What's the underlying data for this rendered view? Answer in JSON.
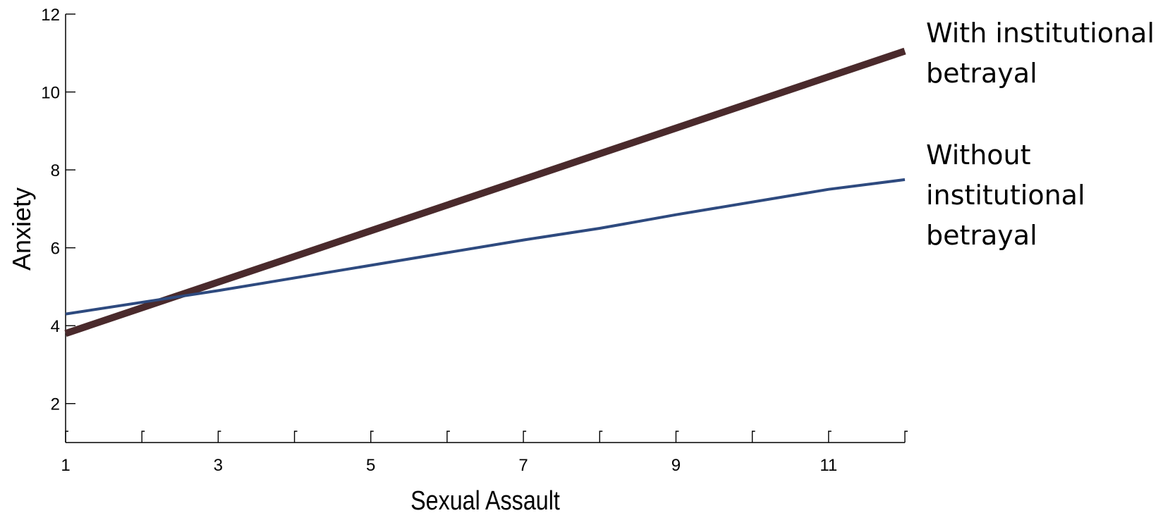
{
  "chart_data": {
    "type": "line",
    "title": "",
    "xlabel": "Sexual Assault",
    "ylabel": "Anxiety",
    "xlim": [
      1,
      12
    ],
    "ylim": [
      1,
      12
    ],
    "x_ticks": [
      1,
      3,
      5,
      7,
      9,
      11
    ],
    "x_minor_ticks": [
      1,
      2,
      3,
      4,
      5,
      6,
      7,
      8,
      9,
      10,
      11,
      12
    ],
    "y_ticks": [
      2,
      4,
      6,
      8,
      10,
      12
    ],
    "grid": false,
    "legend_placement": "right, labels at line ends",
    "series": [
      {
        "name": "With institutional betrayal",
        "label_lines": [
          "With institutional",
          "betrayal"
        ],
        "color": "#4a2a2c",
        "x": [
          1,
          12
        ],
        "y": [
          3.8,
          11.05
        ]
      },
      {
        "name": "Without institutional betrayal",
        "label_lines": [
          "Without",
          "institutional",
          "betrayal"
        ],
        "color": "#2e4a7f",
        "x": [
          1,
          3,
          5,
          7,
          8,
          9,
          11,
          12
        ],
        "y": [
          4.3,
          4.9,
          5.55,
          6.2,
          6.5,
          6.85,
          7.5,
          7.75
        ]
      }
    ]
  }
}
